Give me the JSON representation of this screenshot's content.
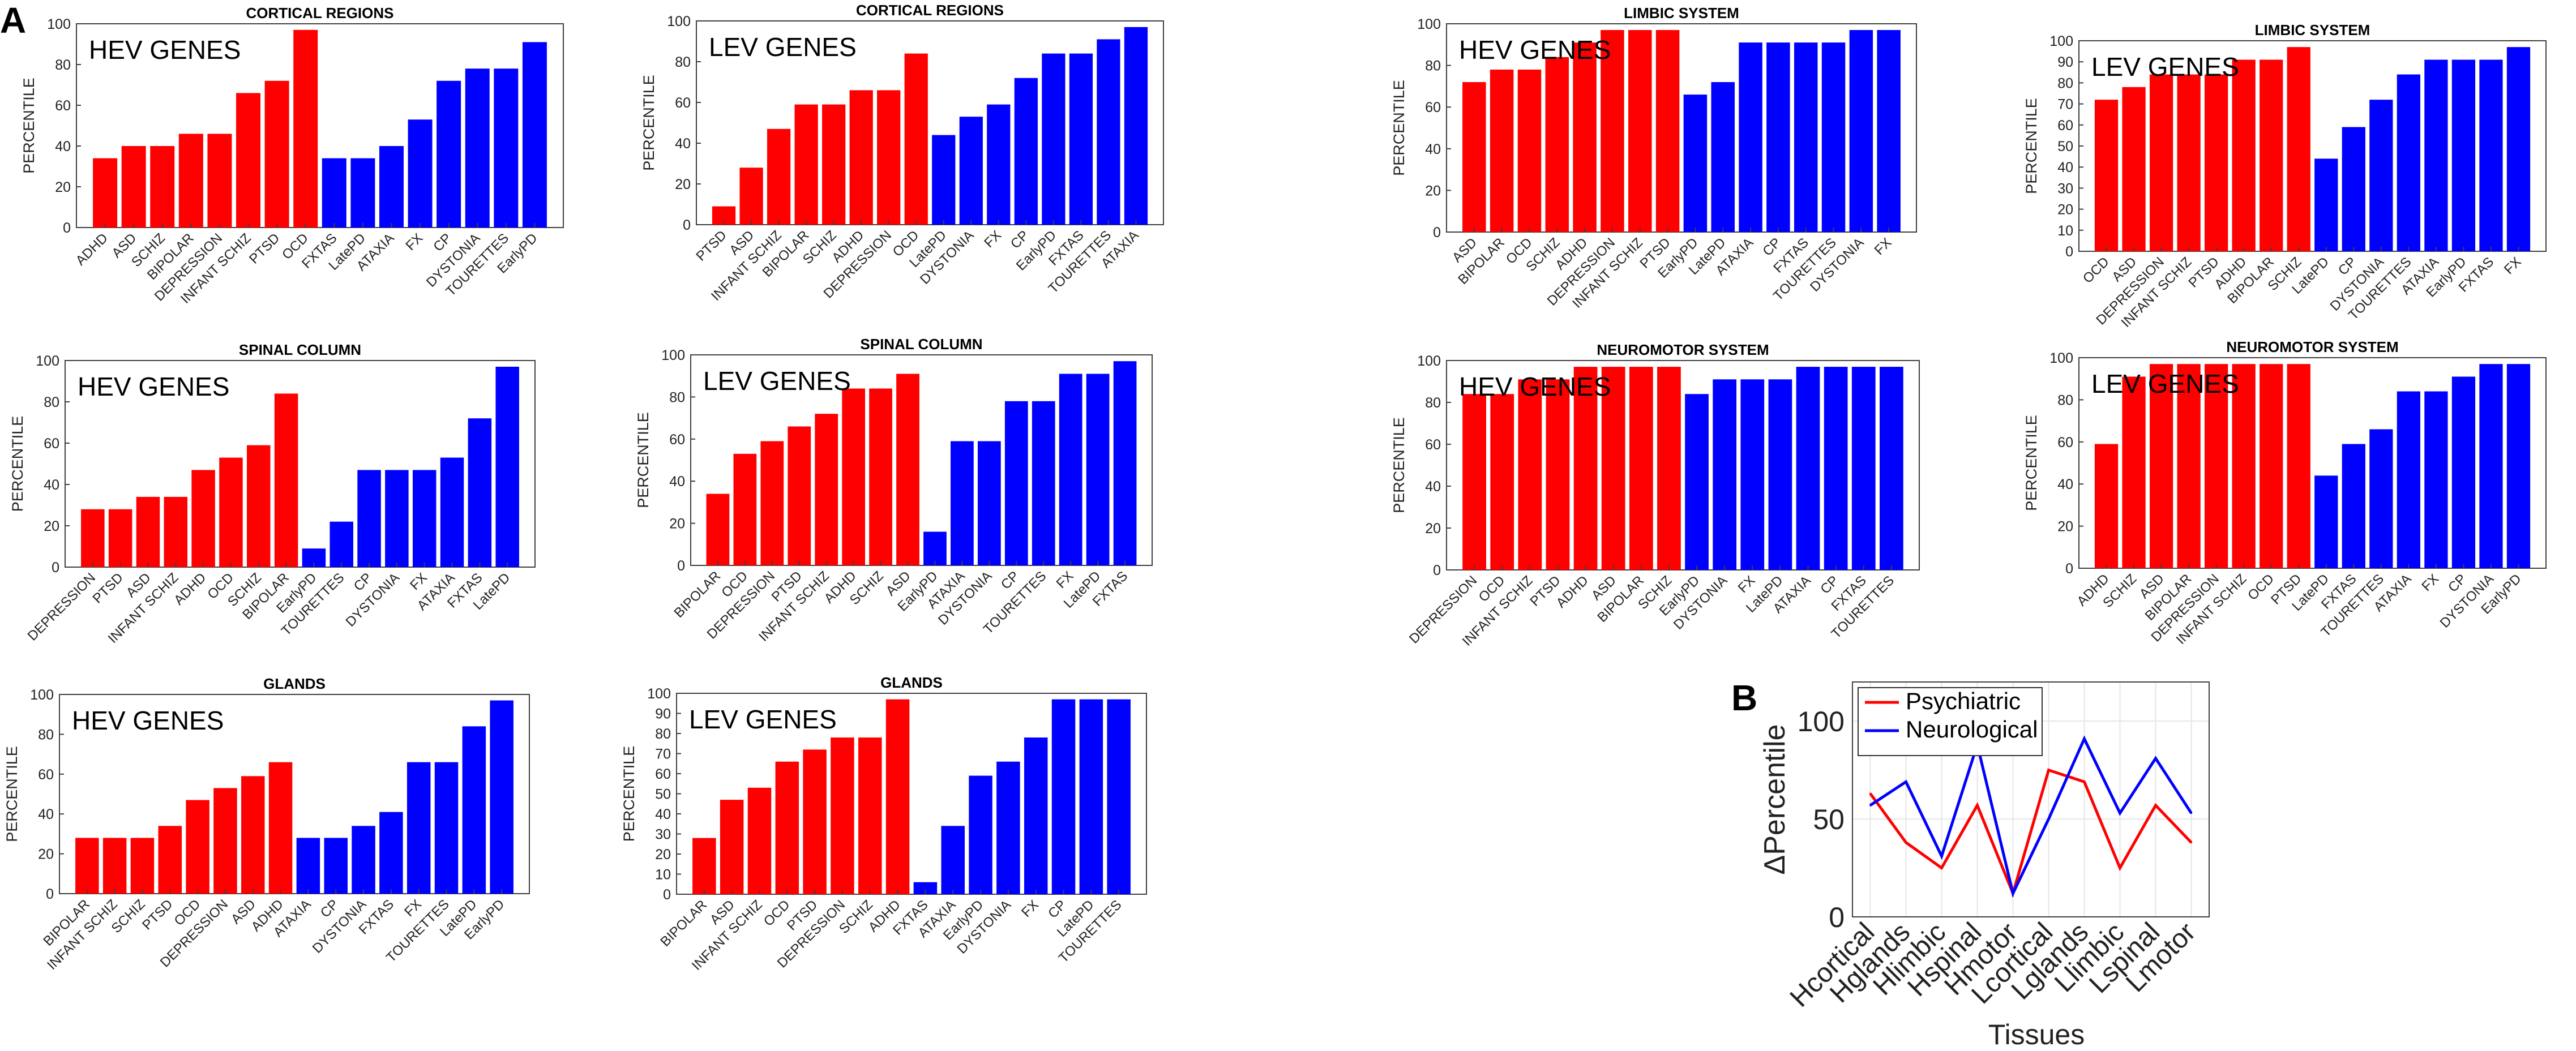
{
  "figure": {
    "panel_a_label": "A",
    "panel_b_label": "B",
    "colors": {
      "psychiatric": "#ff0000",
      "neurological": "#0000ff",
      "axis": "#404040",
      "grid": "#e6e6e6"
    }
  },
  "chart_data": [
    {
      "type": "bar",
      "title": "CORTICAL REGIONS",
      "annotation": "HEV GENES",
      "ylabel": "PERCENTILE",
      "ylim": [
        0,
        100
      ],
      "yticks": [
        0,
        20,
        40,
        60,
        80,
        100
      ],
      "categories": [
        "ADHD",
        "ASD",
        "SCHIZ",
        "BIPOLAR",
        "DEPRESSION",
        "INFANT SCHIZ",
        "PTSD",
        "OCD",
        "FXTAS",
        "LatePD",
        "ATAXIA",
        "FX",
        "CP",
        "DYSTONIA",
        "TOURETTES",
        "EarlyPD"
      ],
      "values": [
        34,
        40,
        40,
        46,
        46,
        66,
        72,
        97,
        34,
        34,
        40,
        53,
        72,
        78,
        78,
        91
      ],
      "groups": [
        "psychiatric",
        "psychiatric",
        "psychiatric",
        "psychiatric",
        "psychiatric",
        "psychiatric",
        "psychiatric",
        "psychiatric",
        "neurological",
        "neurological",
        "neurological",
        "neurological",
        "neurological",
        "neurological",
        "neurological",
        "neurological"
      ]
    },
    {
      "type": "bar",
      "title": "CORTICAL REGIONS",
      "annotation": "LEV GENES",
      "ylabel": "PERCENTILE",
      "ylim": [
        0,
        100
      ],
      "yticks": [
        0,
        20,
        40,
        60,
        80,
        100
      ],
      "categories": [
        "PTSD",
        "ASD",
        "INFANT SCHIZ",
        "BIPOLAR",
        "SCHIZ",
        "ADHD",
        "DEPRESSION",
        "OCD",
        "LatePD",
        "DYSTONIA",
        "FX",
        "CP",
        "EarlyPD",
        "FXTAS",
        "TOURETTES",
        "ATAXIA"
      ],
      "values": [
        9,
        28,
        47,
        59,
        59,
        66,
        66,
        84,
        44,
        53,
        59,
        72,
        84,
        84,
        91,
        97
      ],
      "groups": [
        "psychiatric",
        "psychiatric",
        "psychiatric",
        "psychiatric",
        "psychiatric",
        "psychiatric",
        "psychiatric",
        "psychiatric",
        "neurological",
        "neurological",
        "neurological",
        "neurological",
        "neurological",
        "neurological",
        "neurological",
        "neurological"
      ]
    },
    {
      "type": "bar",
      "title": "LIMBIC SYSTEM",
      "annotation": "HEV GENES",
      "ylabel": "PERCENTILE",
      "ylim": [
        0,
        100
      ],
      "yticks": [
        0,
        20,
        40,
        60,
        80,
        100
      ],
      "categories": [
        "ASD",
        "BIPOLAR",
        "OCD",
        "SCHIZ",
        "ADHD",
        "DEPRESSION",
        "INFANT SCHIZ",
        "PTSD",
        "EarlyPD",
        "LatePD",
        "ATAXIA",
        "CP",
        "FXTAS",
        "TOURETTES",
        "DYSTONIA",
        "FX"
      ],
      "values": [
        72,
        78,
        78,
        84,
        91,
        97,
        97,
        97,
        66,
        72,
        91,
        91,
        91,
        91,
        97,
        97
      ],
      "groups": [
        "psychiatric",
        "psychiatric",
        "psychiatric",
        "psychiatric",
        "psychiatric",
        "psychiatric",
        "psychiatric",
        "psychiatric",
        "neurological",
        "neurological",
        "neurological",
        "neurological",
        "neurological",
        "neurological",
        "neurological",
        "neurological"
      ]
    },
    {
      "type": "bar",
      "title": "LIMBIC SYSTEM",
      "annotation": "LEV GENES",
      "ylabel": "PERCENTILE",
      "ylim": [
        0,
        100
      ],
      "yticks": [
        0,
        10,
        20,
        30,
        40,
        50,
        60,
        70,
        80,
        90,
        100
      ],
      "categories": [
        "OCD",
        "ASD",
        "DEPRESSION",
        "INFANT SCHIZ",
        "PTSD",
        "ADHD",
        "BIPOLAR",
        "SCHIZ",
        "LatePD",
        "CP",
        "DYSTONIA",
        "TOURETTES",
        "ATAXIA",
        "EarlyPD",
        "FXTAS",
        "FX"
      ],
      "values": [
        72,
        78,
        84,
        84,
        84,
        91,
        91,
        97,
        44,
        59,
        72,
        84,
        91,
        91,
        91,
        97
      ],
      "groups": [
        "psychiatric",
        "psychiatric",
        "psychiatric",
        "psychiatric",
        "psychiatric",
        "psychiatric",
        "psychiatric",
        "psychiatric",
        "neurological",
        "neurological",
        "neurological",
        "neurological",
        "neurological",
        "neurological",
        "neurological",
        "neurological"
      ]
    },
    {
      "type": "bar",
      "title": "SPINAL COLUMN",
      "annotation": "HEV GENES",
      "ylabel": "PERCENTILE",
      "ylim": [
        0,
        100
      ],
      "yticks": [
        0,
        20,
        40,
        60,
        80,
        100
      ],
      "categories": [
        "DEPRESSION",
        "PTSD",
        "ASD",
        "INFANT SCHIZ",
        "ADHD",
        "OCD",
        "SCHIZ",
        "BIPOLAR",
        "EarlyPD",
        "TOURETTES",
        "CP",
        "DYSTONIA",
        "FX",
        "ATAXIA",
        "FXTAS",
        "LatePD"
      ],
      "values": [
        28,
        28,
        34,
        34,
        47,
        53,
        59,
        84,
        9,
        22,
        47,
        47,
        47,
        53,
        72,
        97
      ],
      "groups": [
        "psychiatric",
        "psychiatric",
        "psychiatric",
        "psychiatric",
        "psychiatric",
        "psychiatric",
        "psychiatric",
        "psychiatric",
        "neurological",
        "neurological",
        "neurological",
        "neurological",
        "neurological",
        "neurological",
        "neurological",
        "neurological"
      ]
    },
    {
      "type": "bar",
      "title": "SPINAL COLUMN",
      "annotation": "LEV GENES",
      "ylabel": "PERCENTILE",
      "ylim": [
        0,
        100
      ],
      "yticks": [
        0,
        20,
        40,
        60,
        80,
        100
      ],
      "categories": [
        "BIPOLAR",
        "OCD",
        "DEPRESSION",
        "PTSD",
        "INFANT SCHIZ",
        "ADHD",
        "SCHIZ",
        "ASD",
        "EarlyPD",
        "ATAXIA",
        "DYSTONIA",
        "CP",
        "TOURETTES",
        "FX",
        "LatePD",
        "FXTAS"
      ],
      "values": [
        34,
        53,
        59,
        66,
        72,
        84,
        84,
        91,
        16,
        59,
        59,
        78,
        78,
        91,
        91,
        97
      ],
      "groups": [
        "psychiatric",
        "psychiatric",
        "psychiatric",
        "psychiatric",
        "psychiatric",
        "psychiatric",
        "psychiatric",
        "psychiatric",
        "neurological",
        "neurological",
        "neurological",
        "neurological",
        "neurological",
        "neurological",
        "neurological",
        "neurological"
      ]
    },
    {
      "type": "bar",
      "title": "NEUROMOTOR SYSTEM",
      "annotation": "HEV GENES",
      "ylabel": "PERCENTILE",
      "ylim": [
        0,
        100
      ],
      "yticks": [
        0,
        20,
        40,
        60,
        80,
        100
      ],
      "categories": [
        "DEPRESSION",
        "OCD",
        "INFANT SCHIZ",
        "PTSD",
        "ADHD",
        "ASD",
        "BIPOLAR",
        "SCHIZ",
        "EarlyPD",
        "DYSTONIA",
        "FX",
        "LatePD",
        "ATAXIA",
        "CP",
        "FXTAS",
        "TOURETTES"
      ],
      "values": [
        84,
        84,
        91,
        91,
        97,
        97,
        97,
        97,
        84,
        91,
        91,
        91,
        97,
        97,
        97,
        97
      ],
      "groups": [
        "psychiatric",
        "psychiatric",
        "psychiatric",
        "psychiatric",
        "psychiatric",
        "psychiatric",
        "psychiatric",
        "psychiatric",
        "neurological",
        "neurological",
        "neurological",
        "neurological",
        "neurological",
        "neurological",
        "neurological",
        "neurological"
      ]
    },
    {
      "type": "bar",
      "title": "NEUROMOTOR SYSTEM",
      "annotation": "LEV GENES",
      "ylabel": "PERCENTILE",
      "ylim": [
        0,
        100
      ],
      "yticks": [
        0,
        20,
        40,
        60,
        80,
        100
      ],
      "categories": [
        "ADHD",
        "SCHIZ",
        "ASD",
        "BIPOLAR",
        "DEPRESSION",
        "INFANT SCHIZ",
        "OCD",
        "PTSD",
        "LatePD",
        "FXTAS",
        "TOURETTES",
        "ATAXIA",
        "FX",
        "CP",
        "DYSTONIA",
        "EarlyPD"
      ],
      "values": [
        59,
        91,
        97,
        97,
        97,
        97,
        97,
        97,
        44,
        59,
        66,
        84,
        84,
        91,
        97,
        97
      ],
      "groups": [
        "psychiatric",
        "psychiatric",
        "psychiatric",
        "psychiatric",
        "psychiatric",
        "psychiatric",
        "psychiatric",
        "psychiatric",
        "neurological",
        "neurological",
        "neurological",
        "neurological",
        "neurological",
        "neurological",
        "neurological",
        "neurological"
      ]
    },
    {
      "type": "bar",
      "title": "GLANDS",
      "annotation": "HEV GENES",
      "ylabel": "PERCENTILE",
      "ylim": [
        0,
        100
      ],
      "yticks": [
        0,
        20,
        40,
        60,
        80,
        100
      ],
      "categories": [
        "BIPOLAR",
        "INFANT SCHIZ",
        "SCHIZ",
        "PTSD",
        "OCD",
        "DEPRESSION",
        "ASD",
        "ADHD",
        "ATAXIA",
        "CP",
        "DYSTONIA",
        "FXTAS",
        "FX",
        "TOURETTES",
        "LatePD",
        "EarlyPD"
      ],
      "values": [
        28,
        28,
        28,
        34,
        47,
        53,
        59,
        66,
        28,
        28,
        34,
        41,
        66,
        66,
        84,
        97
      ],
      "groups": [
        "psychiatric",
        "psychiatric",
        "psychiatric",
        "psychiatric",
        "psychiatric",
        "psychiatric",
        "psychiatric",
        "psychiatric",
        "neurological",
        "neurological",
        "neurological",
        "neurological",
        "neurological",
        "neurological",
        "neurological",
        "neurological"
      ]
    },
    {
      "type": "bar",
      "title": "GLANDS",
      "annotation": "LEV GENES",
      "ylabel": "PERCENTILE",
      "ylim": [
        0,
        100
      ],
      "yticks": [
        0,
        10,
        20,
        30,
        40,
        50,
        60,
        70,
        80,
        90,
        100
      ],
      "categories": [
        "BIPOLAR",
        "ASD",
        "INFANT SCHIZ",
        "OCD",
        "PTSD",
        "DEPRESSION",
        "SCHIZ",
        "ADHD",
        "FXTAS",
        "ATAXIA",
        "EarlyPD",
        "DYSTONIA",
        "FX",
        "CP",
        "LatePD",
        "TOURETTES"
      ],
      "values": [
        28,
        47,
        53,
        66,
        72,
        78,
        78,
        97,
        6,
        34,
        59,
        66,
        78,
        97,
        97,
        97
      ],
      "groups": [
        "psychiatric",
        "psychiatric",
        "psychiatric",
        "psychiatric",
        "psychiatric",
        "psychiatric",
        "psychiatric",
        "psychiatric",
        "neurological",
        "neurological",
        "neurological",
        "neurological",
        "neurological",
        "neurological",
        "neurological",
        "neurological"
      ]
    },
    {
      "type": "line",
      "title": "",
      "xlabel": "Tissues",
      "ylabel": "ΔPercentile",
      "ylim": [
        0,
        120
      ],
      "yticks": [
        0,
        50,
        100
      ],
      "categories": [
        "Hcortical",
        "Hglands",
        "Hlimbic",
        "Hspinal",
        "Hmotor",
        "Lcortical",
        "Lglands",
        "Llimbic",
        "Lspinal",
        "Lmotor"
      ],
      "series": [
        {
          "name": "Psychiatric",
          "color": "#ff0000",
          "values": [
            63,
            38,
            25,
            57,
            12,
            75,
            69,
            25,
            57,
            38
          ]
        },
        {
          "name": "Neurological",
          "color": "#0000ff",
          "values": [
            57,
            69,
            31,
            88,
            12,
            50,
            91,
            53,
            81,
            53
          ]
        }
      ],
      "legend": "top-left"
    }
  ]
}
